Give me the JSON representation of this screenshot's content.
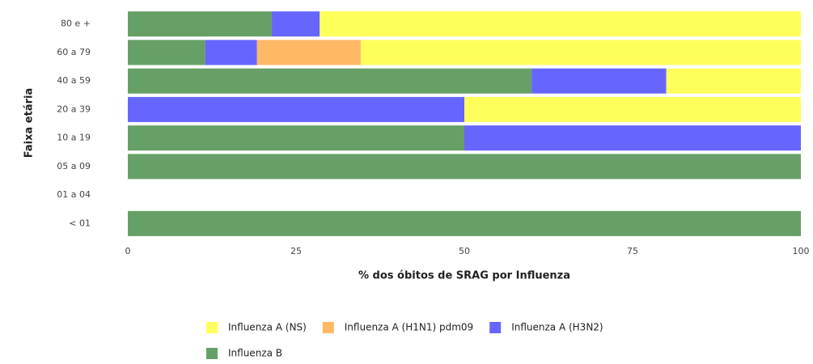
{
  "chart_data": {
    "type": "stacked-barh",
    "x_label": "% dos óbitos de SRAG por Influenza",
    "y_label": "Faixa etária",
    "categories": [
      "80 e +",
      "60 a 79",
      "40 a 59",
      "20 a 39",
      "10 a 19",
      "05 a 09",
      "01 a 04",
      "< 01"
    ],
    "series": [
      {
        "name": "Influenza A (NS)",
        "color": "#ffff5c",
        "values": [
          71.5,
          65.4,
          20,
          50,
          0,
          0,
          0,
          0
        ]
      },
      {
        "name": "Influenza A (H1N1) pdm09",
        "color": "#ffb866",
        "values": [
          0,
          15.4,
          0,
          0,
          0,
          0,
          0,
          0
        ]
      },
      {
        "name": "Influenza A (H3N2)",
        "color": "#6666ff",
        "values": [
          7.1,
          7.7,
          20,
          50,
          50,
          0,
          0,
          0
        ]
      },
      {
        "name": "Influenza B",
        "color": "#66a066",
        "values": [
          21.4,
          11.5,
          60,
          0,
          50,
          100,
          0,
          100
        ]
      }
    ],
    "stack_order": [
      "Influenza B",
      "Influenza A (H3N2)",
      "Influenza A (H1N1) pdm09",
      "Influenza A (NS)"
    ],
    "xlim": [
      0,
      100
    ],
    "xticks": [
      0,
      25,
      50,
      75,
      100
    ],
    "grid": false,
    "legend": "bottom"
  }
}
